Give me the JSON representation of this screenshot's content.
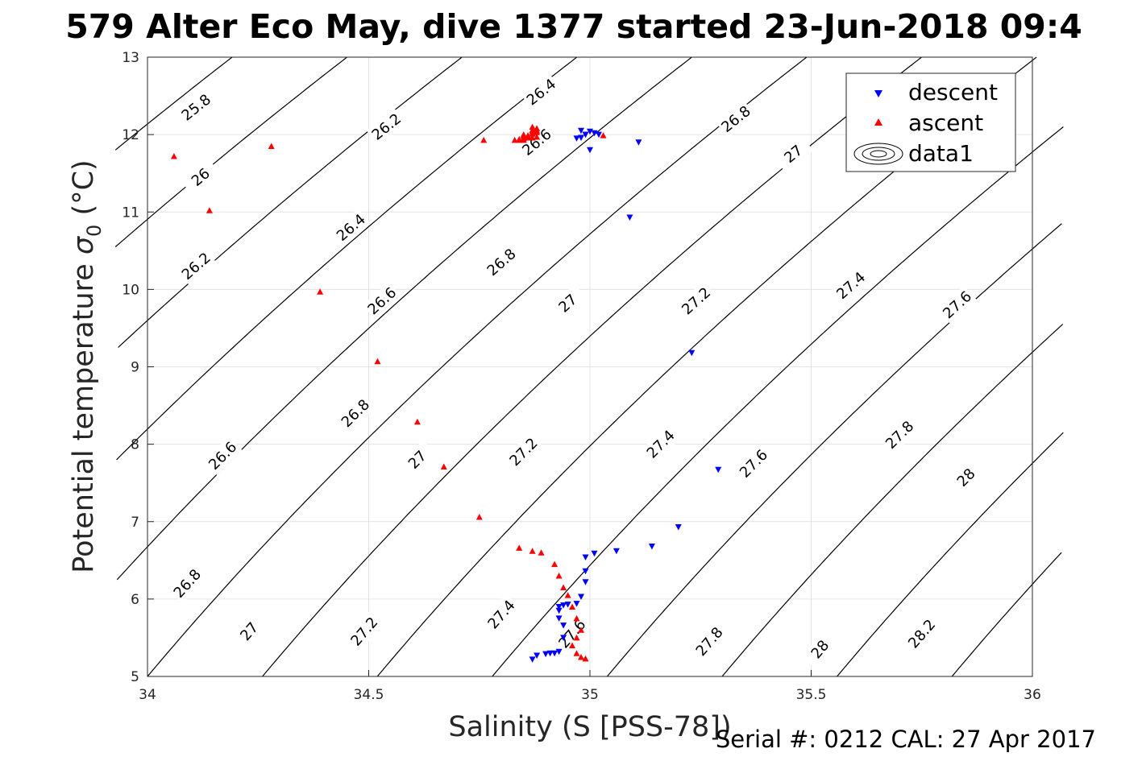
{
  "title": "579 Alter Eco May, dive 1377 started 23-Jun-2018 09:4",
  "footer": "Serial #: 0212  CAL: 27 Apr 2017",
  "chart_data": {
    "type": "scatter",
    "xlabel": "Salinity (S [PSS-78])",
    "ylabel_main": "Potential temperature ",
    "ylabel_sigma": "σ",
    "ylabel_sub": "0",
    "ylabel_unit": " (°C)",
    "xlim": [
      34,
      36
    ],
    "ylim": [
      5,
      13
    ],
    "xticks": [
      "34",
      "34.5",
      "35",
      "35.5",
      "36"
    ],
    "yticks": [
      "5",
      "6",
      "7",
      "8",
      "9",
      "10",
      "11",
      "12",
      "13"
    ],
    "grid": true,
    "legend_position": "top-right",
    "legend": [
      "descent",
      "ascent",
      "data1"
    ],
    "series": [
      {
        "name": "descent",
        "color": "#0000ff",
        "marker": "triangle-down",
        "x": [
          35.0,
          35.01,
          34.99,
          34.97,
          34.98,
          34.99,
          34.98,
          35.0,
          35.02,
          35.11,
          35.09,
          35.23,
          35.29,
          35.2,
          35.14,
          35.06,
          35.01,
          34.99,
          34.99,
          34.99,
          34.98,
          34.97,
          34.95,
          34.94,
          34.93,
          34.93,
          34.93,
          34.94,
          34.94,
          34.93,
          34.92,
          34.91,
          34.9,
          34.88,
          34.87
        ],
        "y": [
          11.8,
          12.02,
          12.0,
          11.95,
          12.05,
          12.0,
          11.96,
          12.04,
          12.0,
          11.9,
          10.93,
          9.18,
          7.67,
          6.93,
          6.68,
          6.62,
          6.59,
          6.54,
          6.36,
          6.22,
          6.03,
          5.94,
          5.93,
          5.92,
          5.9,
          5.85,
          5.75,
          5.66,
          5.5,
          5.32,
          5.3,
          5.3,
          5.29,
          5.27,
          5.22
        ]
      },
      {
        "name": "ascent",
        "color": "#ff0000",
        "marker": "triangle-up",
        "x": [
          34.06,
          34.14,
          34.28,
          34.39,
          34.52,
          34.61,
          34.67,
          34.75,
          34.76,
          34.84,
          34.87,
          34.89,
          34.92,
          34.93,
          34.94,
          34.95,
          34.96,
          34.97,
          34.98,
          34.97,
          34.96,
          34.97,
          34.98,
          34.99,
          35.03,
          34.83,
          34.84,
          34.85,
          34.84,
          34.85,
          34.86,
          34.86,
          34.85,
          34.86,
          34.85,
          34.87,
          34.87,
          34.88,
          34.87,
          34.88,
          34.87,
          34.88,
          34.87,
          34.87,
          34.88
        ],
        "y": [
          11.72,
          11.02,
          11.85,
          9.97,
          9.07,
          8.29,
          7.71,
          7.06,
          11.93,
          6.66,
          6.62,
          6.6,
          6.45,
          6.3,
          6.15,
          6.05,
          5.9,
          5.75,
          5.6,
          5.5,
          5.4,
          5.3,
          5.25,
          5.23,
          11.99,
          11.93,
          11.93,
          11.93,
          11.94,
          11.95,
          11.96,
          11.97,
          11.98,
          11.99,
          12.0,
          12.01,
          12.02,
          12.03,
          12.04,
          12.05,
          12.06,
          12.08,
          12.1,
          11.96,
          11.97
        ]
      }
    ],
    "contour_levels": [
      "25.8",
      "26",
      "26.2",
      "26.4",
      "26.6",
      "26.8",
      "27",
      "27.2",
      "27.4",
      "27.6",
      "27.8",
      "28",
      "28.2"
    ]
  }
}
